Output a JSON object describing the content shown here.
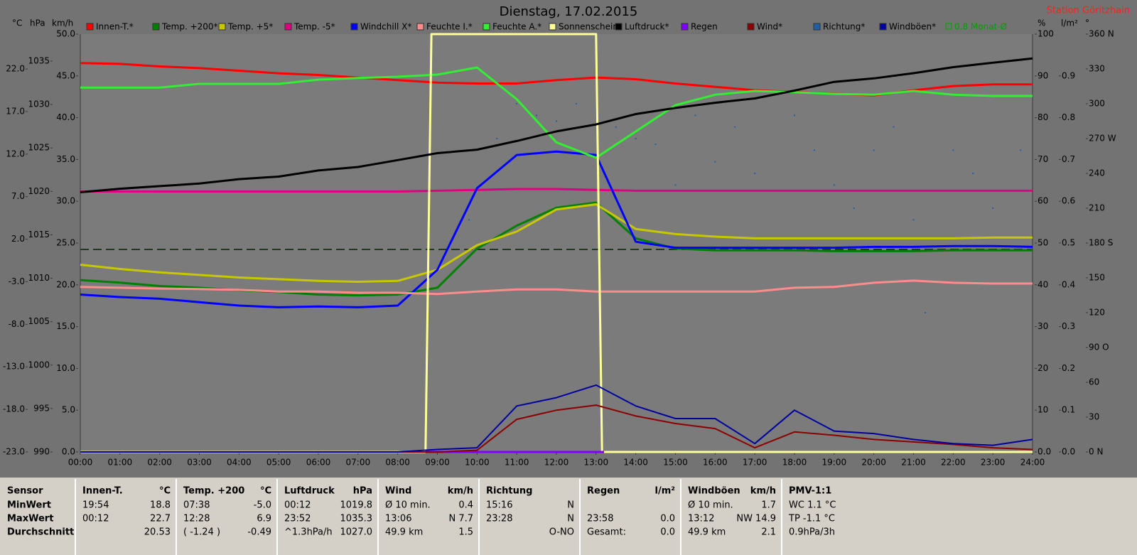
{
  "chart_data": {
    "type": "line",
    "title": "Dienstag, 17.02.2015",
    "station": "Station Göritzhain",
    "xlim": [
      0,
      24
    ],
    "xticks": [
      {
        "value": 0,
        "label": "00:00"
      },
      {
        "value": 1,
        "label": "01:00"
      },
      {
        "value": 2,
        "label": "02:00"
      },
      {
        "value": 3,
        "label": "03:00"
      },
      {
        "value": 4,
        "label": "04:00"
      },
      {
        "value": 5,
        "label": "05:00"
      },
      {
        "value": 6,
        "label": "06:00"
      },
      {
        "value": 7,
        "label": "07:00"
      },
      {
        "value": 8,
        "label": "08:00"
      },
      {
        "value": 9,
        "label": "09:00"
      },
      {
        "value": 10,
        "label": "10:00"
      },
      {
        "value": 11,
        "label": "11:00"
      },
      {
        "value": 12,
        "label": "12:00"
      },
      {
        "value": 13,
        "label": "13:00"
      },
      {
        "value": 14,
        "label": "14:00"
      },
      {
        "value": 15,
        "label": "15:00"
      },
      {
        "value": 16,
        "label": "16:00"
      },
      {
        "value": 17,
        "label": "17:00"
      },
      {
        "value": 18,
        "label": "18:00"
      },
      {
        "value": 19,
        "label": "19:00"
      },
      {
        "value": 20,
        "label": "20:00"
      },
      {
        "value": 21,
        "label": "21:00"
      },
      {
        "value": 22,
        "label": "22:00"
      },
      {
        "value": 23,
        "label": "23:00"
      },
      {
        "value": 24,
        "label": "24:00"
      }
    ],
    "x": [
      0,
      1,
      2,
      3,
      4,
      5,
      6,
      7,
      8,
      9,
      10,
      11,
      12,
      13,
      14,
      15,
      16,
      17,
      18,
      19,
      20,
      21,
      22,
      23,
      24
    ],
    "axes": {
      "temp": {
        "label": "°C",
        "lim": [
          -23,
          26.1
        ],
        "ticks": [
          {
            "value": 22,
            "label": "22.0"
          },
          {
            "value": 17,
            "label": "17.0"
          },
          {
            "value": 12,
            "label": "12.0"
          },
          {
            "value": 7,
            "label": "7.0"
          },
          {
            "value": 2,
            "label": "2.0"
          },
          {
            "value": -3,
            "label": "-3.0"
          },
          {
            "value": -8,
            "label": "-8.0"
          },
          {
            "value": -13,
            "label": "-13.0"
          },
          {
            "value": -18,
            "label": "-18.0"
          },
          {
            "value": -23,
            "label": "-23.0"
          }
        ]
      },
      "pressure": {
        "label": "hPa",
        "lim": [
          990,
          1038.1
        ],
        "ticks": [
          1035,
          1030,
          1025,
          1020,
          1015,
          1010,
          1005,
          1000,
          995,
          990
        ]
      },
      "wind": {
        "label": "km/h",
        "lim": [
          0,
          50
        ],
        "ticks": [
          {
            "value": 50,
            "label": "50.0"
          },
          {
            "value": 45,
            "label": "45.0"
          },
          {
            "value": 40,
            "label": "40.0"
          },
          {
            "value": 35,
            "label": "35.0"
          },
          {
            "value": 30,
            "label": "30.0"
          },
          {
            "value": 25,
            "label": "25.0"
          },
          {
            "value": 20,
            "label": "20.0"
          },
          {
            "value": 15,
            "label": "15.0"
          },
          {
            "value": 10,
            "label": "10.0"
          },
          {
            "value": 5,
            "label": "5.0"
          },
          {
            "value": 0,
            "label": "0.0"
          }
        ]
      },
      "humidity": {
        "label": "%",
        "lim": [
          0,
          100
        ],
        "ticks": [
          100,
          90,
          80,
          70,
          60,
          50,
          40,
          30,
          20,
          10,
          {
            "value": 0,
            "label": "0.0"
          }
        ]
      },
      "rain": {
        "label": "l/m²",
        "lim": [
          0,
          1
        ],
        "ticks": [
          0.9,
          0.8,
          0.7,
          0.6,
          0.5,
          0.4,
          0.3,
          0.2,
          0.1,
          {
            "value": 0,
            "label": "0.0"
          }
        ]
      },
      "direction": {
        "label": "°",
        "lim": [
          0,
          360
        ],
        "ticks": [
          {
            "value": 360,
            "label": "360 N"
          },
          330,
          300,
          {
            "value": 270,
            "label": "270 W"
          },
          240,
          210,
          {
            "value": 180,
            "label": "180 S"
          },
          150,
          120,
          {
            "value": 90,
            "label": "90 O"
          },
          60,
          30,
          {
            "value": 0,
            "label": "0 N"
          }
        ]
      }
    },
    "series": [
      {
        "name": "Innen-T.*",
        "color": "#ff0000",
        "axis": "temp",
        "values": [
          22.7,
          22.6,
          22.3,
          22.1,
          21.8,
          21.5,
          21.3,
          21.0,
          20.7,
          20.4,
          20.3,
          20.3,
          20.7,
          21.0,
          20.8,
          20.3,
          19.9,
          19.5,
          19.3,
          19.1,
          18.9,
          19.5,
          20.0,
          20.2,
          20.2
        ]
      },
      {
        "name": "Temp. +200*",
        "color": "#008000",
        "axis": "temp",
        "values": [
          -2.8,
          -3.1,
          -3.5,
          -3.7,
          -4.0,
          -4.2,
          -4.5,
          -4.6,
          -4.5,
          -3.7,
          0.9,
          3.6,
          5.7,
          6.3,
          2.1,
          0.9,
          0.7,
          0.7,
          0.7,
          0.6,
          0.6,
          0.6,
          0.7,
          0.7,
          0.7
        ]
      },
      {
        "name": "Temp. +5*",
        "color": "#c8c800",
        "axis": "temp",
        "values": [
          -1.0,
          -1.5,
          -1.9,
          -2.2,
          -2.5,
          -2.7,
          -2.9,
          -3.0,
          -2.9,
          -1.6,
          1.3,
          2.9,
          5.5,
          6.1,
          3.2,
          2.6,
          2.3,
          2.1,
          2.1,
          2.1,
          2.1,
          2.1,
          2.1,
          2.2,
          2.2
        ]
      },
      {
        "name": "Temp. -5*",
        "color": "#e0007f",
        "axis": "temp",
        "values": [
          7.6,
          7.6,
          7.6,
          7.6,
          7.6,
          7.6,
          7.6,
          7.6,
          7.6,
          7.7,
          7.8,
          7.9,
          7.9,
          7.8,
          7.7,
          7.7,
          7.7,
          7.7,
          7.7,
          7.7,
          7.7,
          7.7,
          7.7,
          7.7,
          7.7
        ]
      },
      {
        "name": "Windchill X*",
        "color": "#0000ff",
        "axis": "temp",
        "values": [
          -4.5,
          -4.8,
          -5.0,
          -5.4,
          -5.8,
          -6.0,
          -5.9,
          -6.0,
          -5.8,
          -1.6,
          8.0,
          11.9,
          12.3,
          11.9,
          1.7,
          1.0,
          1.0,
          1.0,
          1.0,
          1.0,
          1.1,
          1.1,
          1.2,
          1.2,
          1.1
        ]
      },
      {
        "name": "Feuchte I.*",
        "color": "#ff8c8c",
        "axis": "humidity",
        "values": [
          39.5,
          39.3,
          39.1,
          39.0,
          38.8,
          38.4,
          38.4,
          38.1,
          38.1,
          37.8,
          38.4,
          38.9,
          38.9,
          38.4,
          38.4,
          38.4,
          38.4,
          38.4,
          39.3,
          39.5,
          40.5,
          41.0,
          40.5,
          40.3,
          40.3
        ]
      },
      {
        "name": "Feuchte A.*",
        "color": "#33ee33",
        "axis": "humidity",
        "values": [
          87.2,
          87.2,
          87.2,
          88.1,
          88.1,
          88.1,
          89.1,
          89.5,
          89.8,
          90.3,
          92.0,
          84.4,
          74.1,
          70.4,
          76.7,
          83.0,
          85.5,
          86.4,
          86.1,
          85.7,
          85.5,
          86.4,
          85.5,
          85.2,
          85.2
        ]
      },
      {
        "name": "Sonnenschein",
        "color": "#ffff99",
        "axis": "humidity",
        "x": [
          0,
          8.7,
          8.85,
          13.0,
          13.15,
          24
        ],
        "values": [
          0,
          0,
          100,
          100,
          0,
          0
        ]
      },
      {
        "name": "Luftdruck*",
        "color": "#000000",
        "axis": "pressure",
        "values": [
          1019.9,
          1020.3,
          1020.6,
          1020.9,
          1021.4,
          1021.7,
          1022.4,
          1022.8,
          1023.6,
          1024.4,
          1024.8,
          1025.8,
          1026.9,
          1027.7,
          1028.9,
          1029.6,
          1030.2,
          1030.7,
          1031.6,
          1032.6,
          1033.0,
          1033.6,
          1034.3,
          1034.8,
          1035.3
        ]
      },
      {
        "name": "Regen",
        "color": "#8000ff",
        "axis": "rain",
        "x": [
          8.7,
          13.2
        ],
        "values": [
          0,
          0
        ]
      },
      {
        "name": "Wind*",
        "color": "#8b0000",
        "axis": "wind",
        "values": [
          0,
          0,
          0,
          0,
          0,
          0,
          0,
          0,
          0,
          0,
          0.2,
          3.9,
          5.0,
          5.6,
          4.3,
          3.4,
          2.8,
          0.5,
          2.4,
          2.0,
          1.5,
          1.2,
          0.9,
          0.5,
          0.3
        ]
      },
      {
        "name": "Richtung*",
        "color": "#1f5fa8",
        "axis": "direction",
        "style": "dots",
        "x": [
          9.8,
          10.5,
          11,
          11.5,
          12,
          12.5,
          13.5,
          14,
          14.5,
          15,
          15.5,
          16,
          16.5,
          17,
          18,
          18.5,
          19,
          19.5,
          20,
          20.5,
          21,
          21.3,
          22,
          22.5,
          23,
          23.7
        ],
        "values": [
          200,
          270,
          300,
          290,
          285,
          300,
          280,
          270,
          265,
          230,
          290,
          250,
          280,
          240,
          290,
          260,
          230,
          210,
          260,
          280,
          200,
          120,
          260,
          240,
          210,
          260
        ]
      },
      {
        "name": "Windböen*",
        "color": "#0000a0",
        "axis": "wind",
        "values": [
          0,
          0,
          0,
          0,
          0,
          0,
          0,
          0,
          0,
          0.3,
          0.5,
          5.5,
          6.5,
          8.0,
          5.5,
          4.0,
          4.0,
          1.0,
          5.0,
          2.5,
          2.2,
          1.5,
          1.0,
          0.8,
          1.5
        ]
      }
    ],
    "monthly_mean": {
      "label": "0.8 Monat-Ø",
      "value": 0.8,
      "axis": "temp",
      "color": "#00a000"
    }
  },
  "table": {
    "columns": [
      {
        "name": "Sensor"
      },
      {
        "name": "Innen-T.",
        "unit": "°C"
      },
      {
        "name": "Temp. +200",
        "unit": "°C"
      },
      {
        "name": "Luftdruck",
        "unit": "hPa"
      },
      {
        "name": "Wind",
        "unit": "km/h"
      },
      {
        "name": "Richtung"
      },
      {
        "name": "Regen",
        "unit": "l/m²"
      },
      {
        "name": "Windböen",
        "unit": "km/h"
      },
      {
        "name": "PMV-1:1"
      }
    ],
    "rows": [
      {
        "label": "MinWert",
        "cells": [
          [
            "19:54",
            "18.8"
          ],
          [
            "07:38",
            "-5.0"
          ],
          [
            "00:12",
            "1019.8"
          ],
          [
            "Ø 10 min.",
            "0.4"
          ],
          [
            "15:16",
            "N"
          ],
          [
            null,
            null
          ],
          [
            "Ø 10 min.",
            "1.7"
          ],
          [
            "WC 1.1 °C",
            null
          ]
        ]
      },
      {
        "label": "MaxWert",
        "cells": [
          [
            "00:12",
            "22.7"
          ],
          [
            "12:28",
            "6.9"
          ],
          [
            "23:52",
            "1035.3"
          ],
          [
            "13:06",
            "N 7.7"
          ],
          [
            "23:28",
            "N"
          ],
          [
            "23:58",
            "0.0"
          ],
          [
            "13:12",
            "NW 14.9"
          ],
          [
            "TP -1.1 °C",
            null
          ]
        ]
      },
      {
        "label": "Durchschnitt",
        "cells": [
          [
            null,
            "20.53"
          ],
          [
            "( -1.24 )",
            "-0.49"
          ],
          [
            "^1.3hPa/h",
            "1027.0"
          ],
          [
            "49.9 km",
            "1.5"
          ],
          [
            null,
            "O-NO"
          ],
          [
            "Gesamt:",
            "0.0"
          ],
          [
            "49.9 km",
            "2.1"
          ],
          [
            "0.9hPa/3h",
            null
          ]
        ]
      }
    ]
  }
}
